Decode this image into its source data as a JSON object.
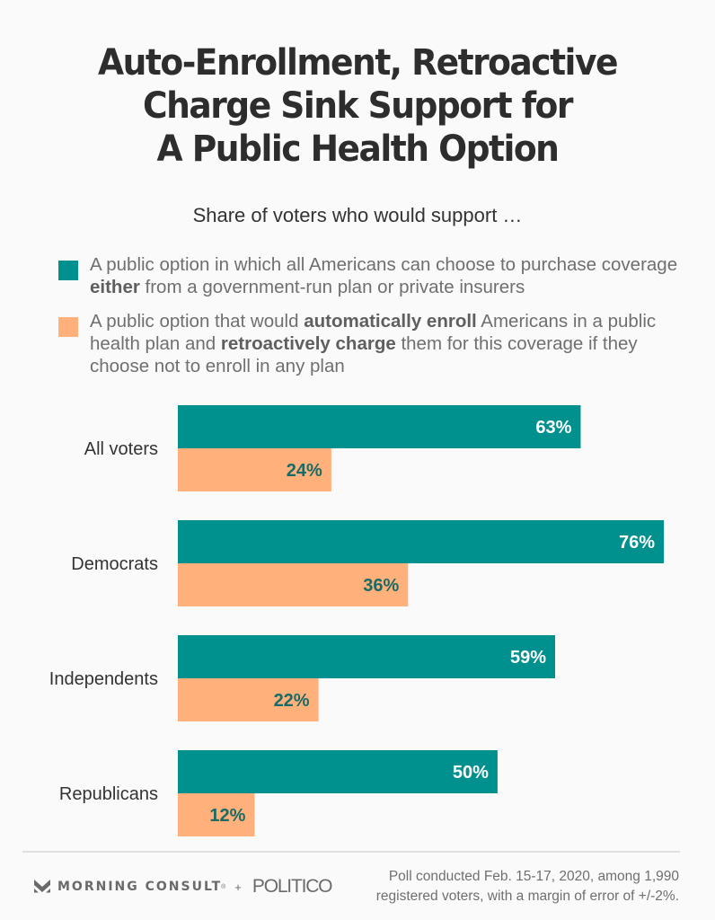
{
  "header": {
    "title_lines": [
      "Auto-Enrollment, Retroactive",
      "Charge Sink Support for",
      "A Public Health Option"
    ],
    "subtitle": "Share of voters who would support …"
  },
  "legend": [
    {
      "color": "#00918e",
      "segments": [
        {
          "text": "A public option in which all Americans can choose to purchase coverage ",
          "bold": false
        },
        {
          "text": "either",
          "bold": true
        },
        {
          "text": " from a government-run plan or private insurers",
          "bold": false
        }
      ]
    },
    {
      "color": "#ffb07b",
      "segments": [
        {
          "text": "A public option that would ",
          "bold": false
        },
        {
          "text": "automatically enroll",
          "bold": true
        },
        {
          "text": " Americans in a public health plan and ",
          "bold": false
        },
        {
          "text": "retroactively charge",
          "bold": true
        },
        {
          "text": " them for this coverage if they choose not to enroll in any plan",
          "bold": false
        }
      ]
    }
  ],
  "chart_data": {
    "type": "bar",
    "orientation": "horizontal",
    "title": "Auto-Enrollment, Retroactive Charge Sink Support for A Public Health Option",
    "subtitle": "Share of voters who would support …",
    "categories": [
      "All voters",
      "Democrats",
      "Independents",
      "Republicans"
    ],
    "series": [
      {
        "name": "A public option in which all Americans can choose to purchase coverage either from a government-run plan or private insurers",
        "color": "#00918e",
        "label_color": "#ffffff",
        "values": [
          63,
          76,
          59,
          50
        ]
      },
      {
        "name": "A public option that would automatically enroll Americans in a public health plan and retroactively charge them for this coverage if they choose not to enroll in any plan",
        "color": "#ffb07b",
        "label_color": "#1a6b66",
        "values": [
          24,
          36,
          22,
          12
        ]
      }
    ],
    "value_suffix": "%",
    "xlim": [
      0,
      76
    ],
    "grid": false,
    "legend_position": "top"
  },
  "footer": {
    "brand_1": "MORNING CONSULT",
    "brand_1_mark": "®",
    "plus": "+",
    "brand_2": "POLITICO",
    "source_lines": [
      "Poll conducted Feb. 15-17, 2020, among 1,990",
      "registered voters, with a margin of error of +/-2%."
    ]
  }
}
